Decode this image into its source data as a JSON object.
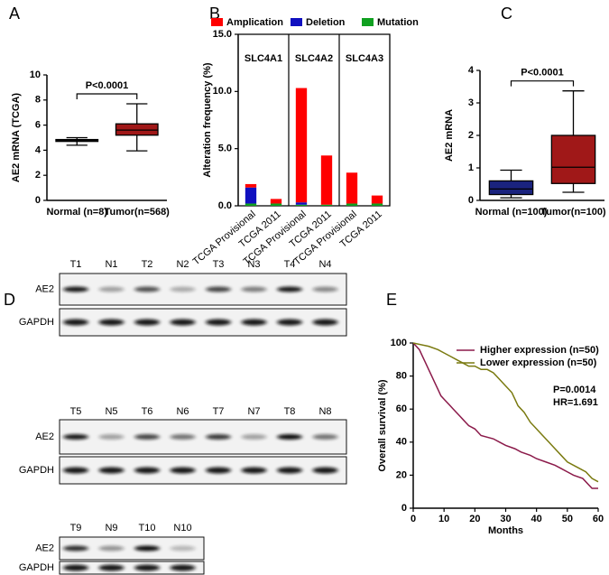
{
  "chart_data": [
    {
      "type": "box",
      "panel_label": "A",
      "ylabel": "AE2 mRNA (TCGA)",
      "annotation": "P<0.0001",
      "categories": [
        "Normal (n=8)",
        "Tumor(n=568)"
      ],
      "colors": [
        "#222222",
        "#a01818"
      ],
      "low": [
        4.4,
        3.95
      ],
      "q1": [
        4.7,
        5.2
      ],
      "median": [
        4.8,
        5.6
      ],
      "q3": [
        4.85,
        6.1
      ],
      "high": [
        5.0,
        7.7
      ],
      "ylim": [
        0,
        10
      ],
      "yticks": [
        0,
        2,
        4,
        6,
        8,
        10
      ]
    },
    {
      "type": "stacked-bar",
      "panel_label": "B",
      "ylabel": "Alteration frequency (%)",
      "legend": "top",
      "groups": [
        "SLC4A1",
        "SLC4A2",
        "SLC4A3"
      ],
      "categories": [
        "TCGA Provisional",
        "TCGA 2011",
        "TCGA Provisional",
        "TCGA 2011",
        "TCGA Provisional",
        "TCGA 2011"
      ],
      "series": [
        {
          "name": "Amplication",
          "color": "#ff0000",
          "values": [
            0.3,
            0.4,
            10.0,
            4.3,
            2.7,
            0.7
          ]
        },
        {
          "name": "Deletion",
          "color": "#1010c0",
          "values": [
            1.4,
            0,
            0.2,
            0,
            0,
            0
          ]
        },
        {
          "name": "Mutation",
          "color": "#10a020",
          "values": [
            0.2,
            0.2,
            0.1,
            0.1,
            0.2,
            0.2
          ]
        }
      ],
      "ylim": [
        0,
        15
      ],
      "yticks": [
        {
          "value": 0,
          "label": "0.0"
        },
        {
          "value": 5,
          "label": "5.0"
        },
        {
          "value": 10,
          "label": "10.0"
        },
        {
          "value": 15,
          "label": "15.0"
        }
      ]
    },
    {
      "type": "box",
      "panel_label": "C",
      "ylabel": "AE2 mRNA",
      "annotation": "P<0.0001",
      "categories": [
        "Normal (n=100)",
        "Tumor(n=100)"
      ],
      "colors": [
        "#1a237e",
        "#a01818"
      ],
      "low": [
        0.08,
        0.25
      ],
      "q1": [
        0.18,
        0.52
      ],
      "median": [
        0.35,
        1.02
      ],
      "q3": [
        0.6,
        2.0
      ],
      "high": [
        0.93,
        3.37
      ],
      "ylim": [
        0,
        4
      ],
      "yticks": [
        0,
        1,
        2,
        3,
        4
      ]
    },
    {
      "type": "line",
      "panel_label": "E",
      "xlabel": "Months",
      "ylabel": "Overall survival (%)",
      "legend": "upper right",
      "annotations": [
        "P=0.0014",
        "HR=1.691"
      ],
      "series": [
        {
          "name": "Higher expression (n=50)",
          "color": "#8b1a4a",
          "x": [
            0,
            2,
            3,
            4,
            5,
            6,
            7,
            8,
            9,
            10,
            11,
            12,
            13,
            14,
            15,
            16,
            17,
            18,
            20,
            22,
            26,
            28,
            30,
            33,
            35,
            38,
            40,
            43,
            46,
            48,
            50,
            52,
            55,
            57,
            58,
            60
          ],
          "values": [
            100,
            96,
            92,
            88,
            84,
            80,
            76,
            72,
            68,
            66,
            64,
            62,
            60,
            58,
            56,
            54,
            52,
            50,
            48,
            44,
            42,
            40,
            38,
            36,
            34,
            32,
            30,
            28,
            26,
            24,
            22,
            20,
            18,
            14,
            12,
            12
          ]
        },
        {
          "name": "Lower expression (n=50)",
          "color": "#7a7a10",
          "x": [
            0,
            5,
            8,
            10,
            12,
            14,
            16,
            18,
            20,
            22,
            24,
            26,
            28,
            30,
            32,
            33,
            34,
            36,
            38,
            40,
            42,
            44,
            46,
            48,
            50,
            52,
            54,
            56,
            58,
            60
          ],
          "values": [
            100,
            98,
            96,
            94,
            92,
            90,
            88,
            86,
            86,
            84,
            84,
            82,
            78,
            74,
            70,
            66,
            62,
            58,
            52,
            48,
            44,
            40,
            36,
            32,
            28,
            26,
            24,
            22,
            18,
            16
          ]
        }
      ],
      "xlim": [
        0,
        60
      ],
      "xticks": [
        0,
        10,
        20,
        30,
        40,
        50,
        60
      ],
      "ylim": [
        0,
        100
      ],
      "yticks": [
        0,
        20,
        40,
        60,
        80,
        100
      ]
    }
  ],
  "blots": {
    "panel_label": "D",
    "groups": [
      {
        "lanes": [
          "T1",
          "N1",
          "T2",
          "N2",
          "T3",
          "N3",
          "T4",
          "N4"
        ],
        "rows": [
          "AE2",
          "GAPDH"
        ]
      },
      {
        "lanes": [
          "T5",
          "N5",
          "T6",
          "N6",
          "T7",
          "N7",
          "T8",
          "N8"
        ],
        "rows": [
          "AE2",
          "GAPDH"
        ]
      },
      {
        "lanes": [
          "T9",
          "N9",
          "T10",
          "N10"
        ],
        "rows": [
          "AE2",
          "GAPDH"
        ]
      }
    ]
  }
}
